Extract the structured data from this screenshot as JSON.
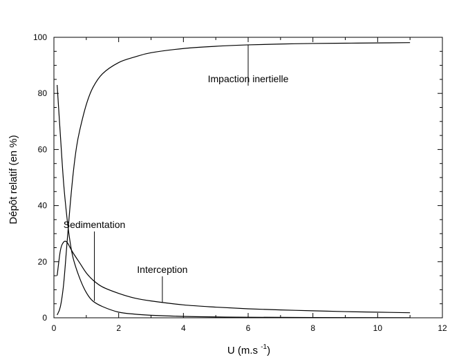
{
  "chart_data": {
    "type": "line",
    "xlabel": "U (m.s ",
    "xlabel_exp": "-1",
    "xlabel_close": ")",
    "ylabel": "Dépôt relatif (en %)",
    "xlim": [
      0,
      12
    ],
    "ylim": [
      0,
      100
    ],
    "xticks": [
      "0",
      "2",
      "4",
      "6",
      "8",
      "10",
      "12"
    ],
    "yticks": [
      "0",
      "20",
      "40",
      "60",
      "80",
      "100"
    ],
    "grid": false,
    "series": [
      {
        "name": "Impaction inertielle",
        "x": [
          0.1,
          0.2,
          0.3,
          0.4,
          0.5,
          0.6,
          0.7,
          0.8,
          1.0,
          1.2,
          1.5,
          2,
          2.5,
          3,
          4,
          5,
          6,
          7,
          8,
          9,
          10,
          11
        ],
        "y": [
          1,
          4,
          12,
          26,
          40,
          52,
          61,
          67,
          76,
          82,
          87,
          91,
          93,
          94.5,
          96,
          96.8,
          97.3,
          97.6,
          97.8,
          97.9,
          98,
          98.1
        ]
      },
      {
        "name": "Sedimentation",
        "x": [
          0.1,
          0.2,
          0.3,
          0.4,
          0.5,
          0.6,
          0.8,
          1.0,
          1.2,
          1.5,
          2,
          2.5,
          3,
          4,
          5,
          6,
          8,
          11
        ],
        "y": [
          83,
          65,
          48,
          36,
          27,
          21,
          14,
          9,
          6,
          4,
          2,
          1.3,
          0.9,
          0.5,
          0.3,
          0.2,
          0.1,
          0.05
        ]
      },
      {
        "name": "Interception",
        "x": [
          0.1,
          0.2,
          0.3,
          0.4,
          0.5,
          0.6,
          0.8,
          1.0,
          1.2,
          1.5,
          2,
          2.5,
          3,
          4,
          5,
          6,
          7,
          8,
          9,
          10,
          11
        ],
        "y": [
          15,
          24,
          27,
          27,
          25,
          23,
          19.5,
          16,
          13.5,
          11,
          8.7,
          7,
          6,
          4.6,
          3.8,
          3.2,
          2.8,
          2.5,
          2.2,
          2,
          1.8
        ]
      }
    ],
    "annotations": [
      {
        "text": "Impaction inertielle",
        "x": 6.0,
        "y": 84,
        "target_x": 6.0,
        "target_y": 97.3
      },
      {
        "text": "Sedimentation",
        "x": 1.25,
        "y": 32,
        "target_x": 1.25,
        "target_y": 6
      },
      {
        "text": "Interception",
        "x": 3.35,
        "y": 16,
        "target_x": 3.35,
        "target_y": 5.5
      }
    ]
  }
}
